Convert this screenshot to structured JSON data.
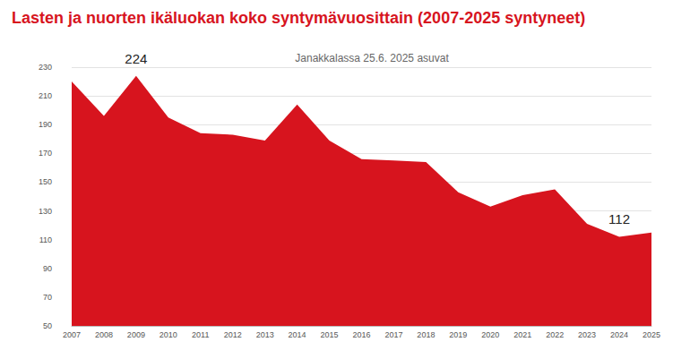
{
  "chart_data": {
    "type": "area",
    "title": "Lasten ja nuorten ikäluokan koko syntymävuosittain (2007-2025 syntyneet)",
    "subtitle": "Janakkalassa 25.6. 2025 asuvat",
    "categories": [
      "2007",
      "2008",
      "2009",
      "2010",
      "2011",
      "2012",
      "2013",
      "2014",
      "2015",
      "2016",
      "2017",
      "2018",
      "2019",
      "2020",
      "2021",
      "2022",
      "2023",
      "2024",
      "2025"
    ],
    "values": [
      220,
      196,
      224,
      195,
      184,
      183,
      179,
      204,
      179,
      166,
      165,
      164,
      143,
      133,
      141,
      145,
      121,
      112,
      115
    ],
    "color": "#d7141e",
    "ylim": [
      50,
      230
    ],
    "yticks": [
      50,
      70,
      90,
      110,
      130,
      150,
      170,
      190,
      210,
      230
    ],
    "grid": true,
    "annotations": [
      {
        "category": "2009",
        "value": 224,
        "text": "224"
      },
      {
        "category": "2024",
        "value": 112,
        "text": "112"
      }
    ]
  }
}
